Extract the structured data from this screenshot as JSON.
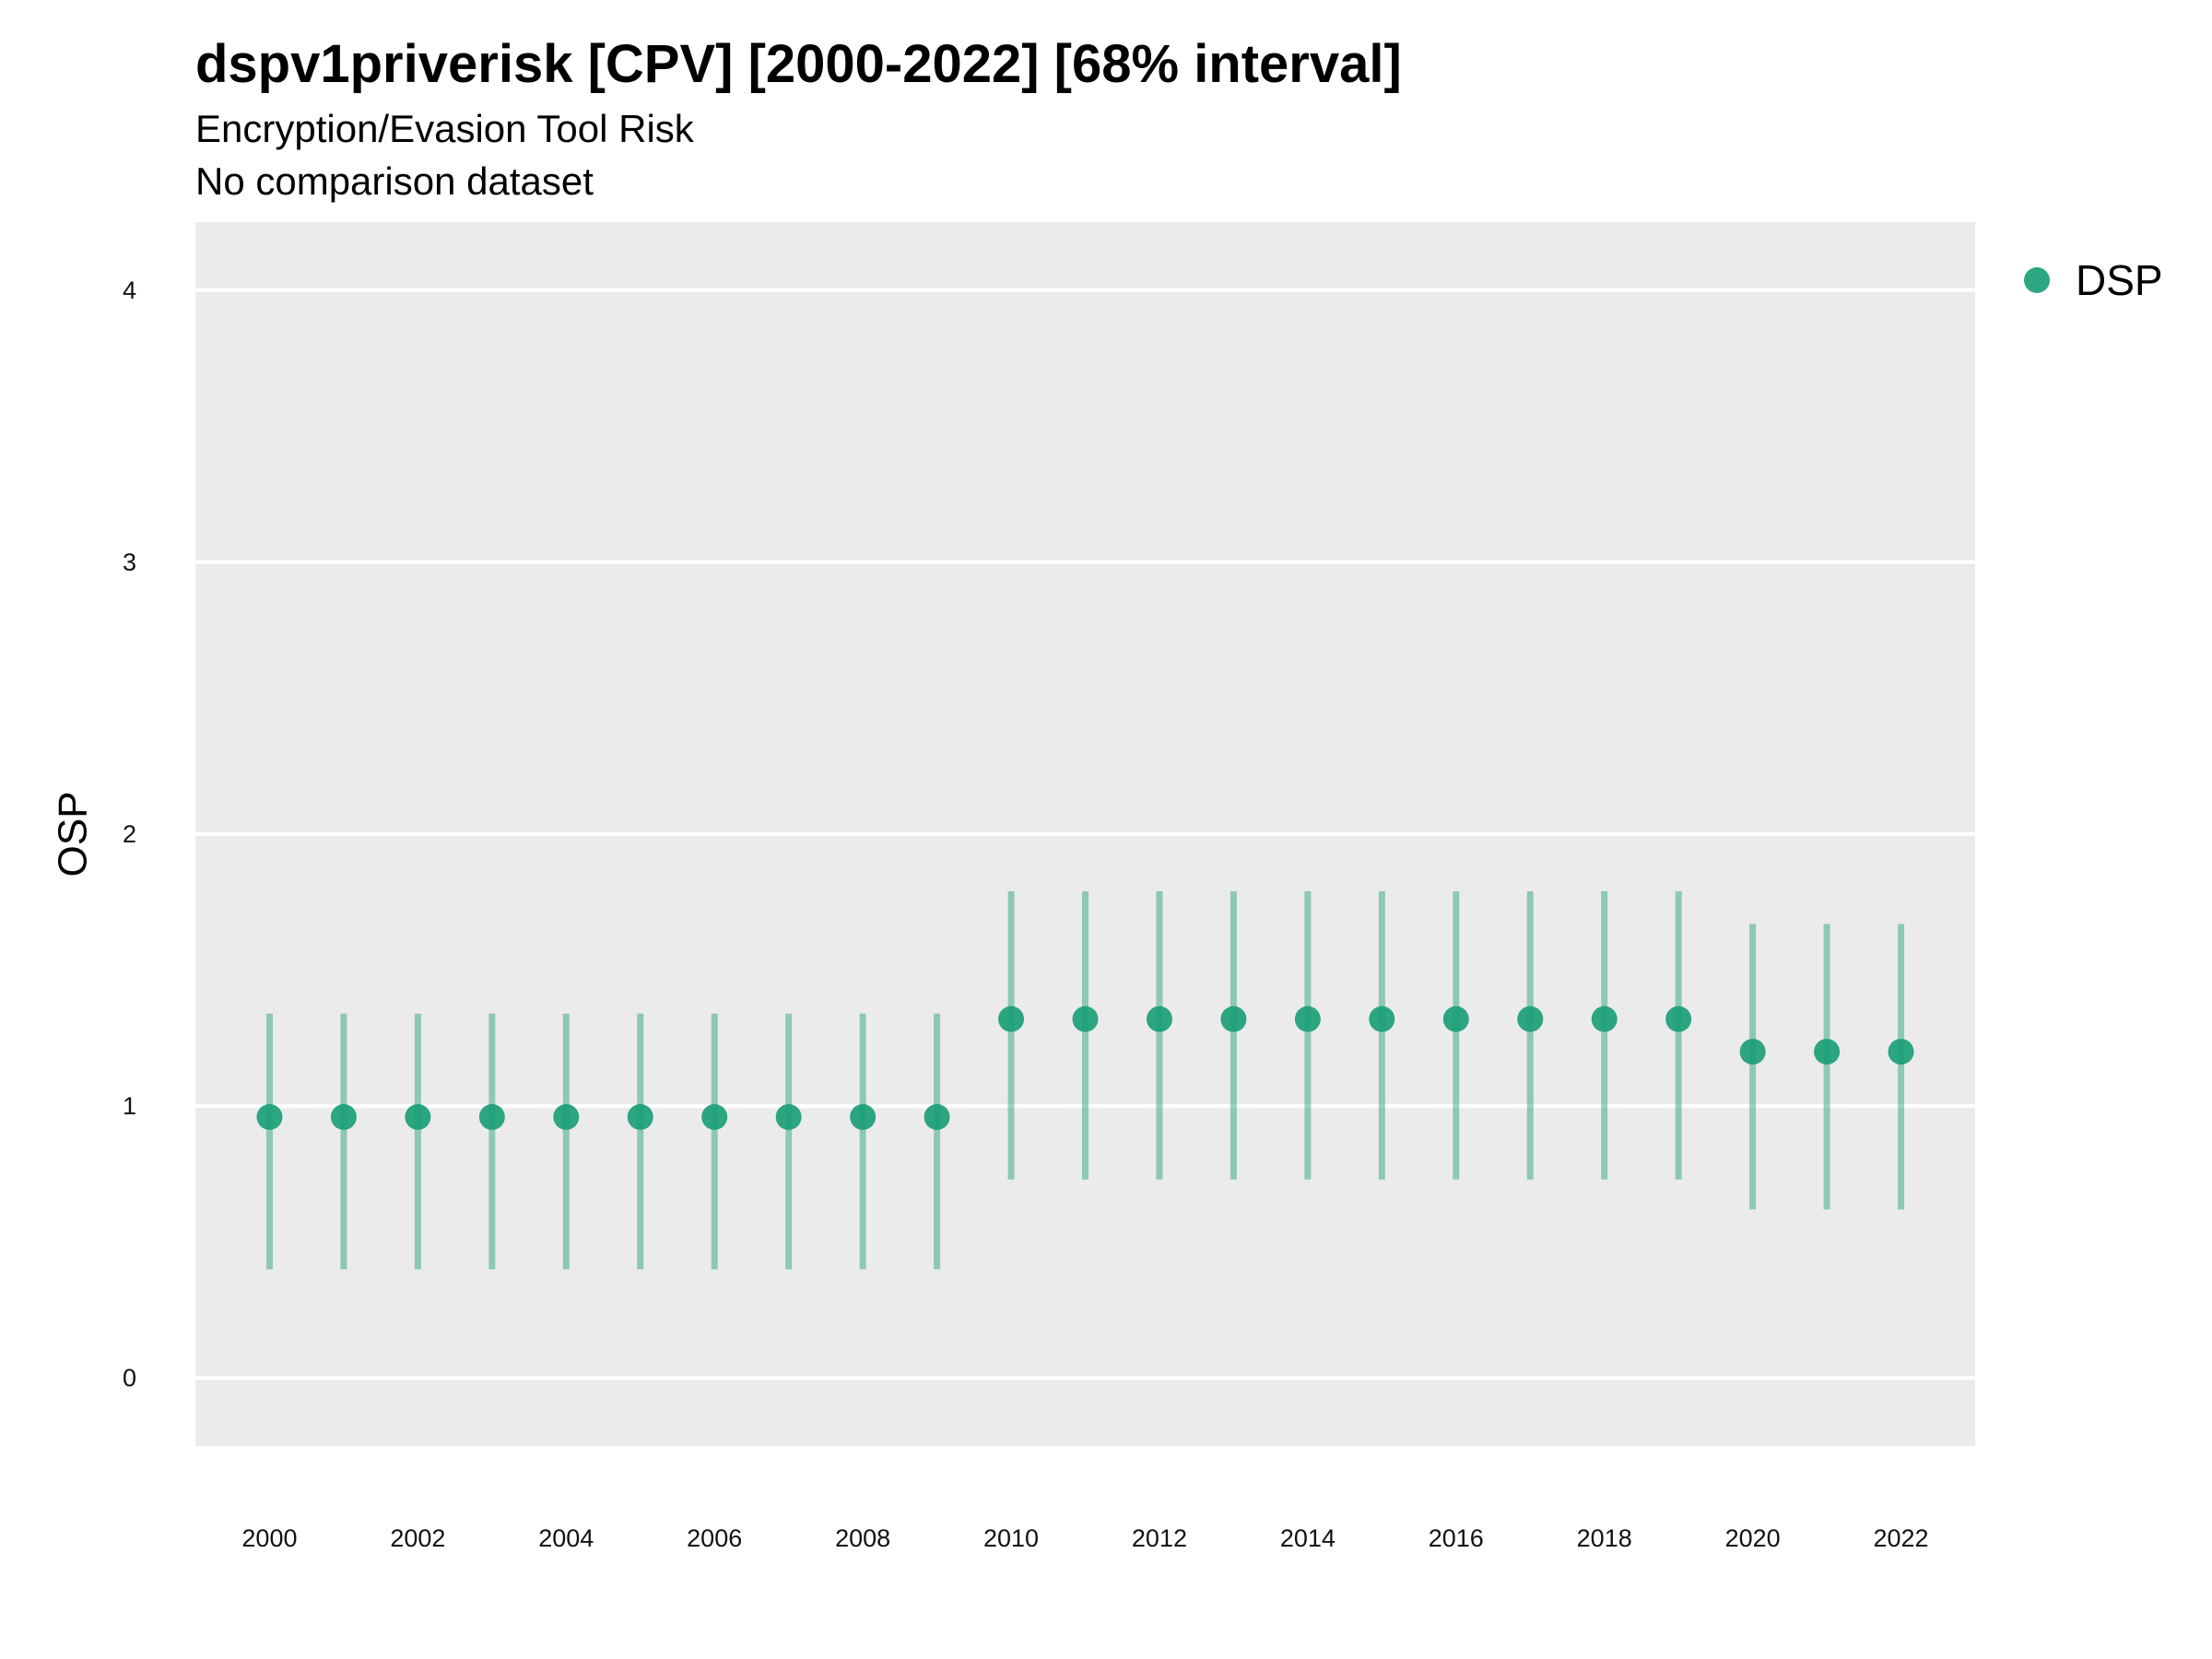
{
  "chart_data": {
    "type": "scatter",
    "title": "dspv1priverisk [CPV] [2000-2022] [68% interval]",
    "subtitle": "Encryption/Evasion Tool Risk",
    "caption": "No comparison dataset",
    "xlabel": "",
    "ylabel": "OSP",
    "xlim": [
      1999,
      2023
    ],
    "ylim": [
      -0.25,
      4.25
    ],
    "x_ticks": [
      2000,
      2002,
      2004,
      2006,
      2008,
      2010,
      2012,
      2014,
      2016,
      2018,
      2020,
      2022
    ],
    "y_ticks": [
      0,
      1,
      2,
      3,
      4
    ],
    "grid": true,
    "legend_position": "top-right",
    "series": [
      {
        "name": "DSP",
        "color": "#1b9e77",
        "x": [
          2000,
          2001,
          2002,
          2003,
          2004,
          2005,
          2006,
          2007,
          2008,
          2009,
          2010,
          2011,
          2012,
          2013,
          2014,
          2015,
          2016,
          2017,
          2018,
          2019,
          2020,
          2021,
          2022
        ],
        "y": [
          0.96,
          0.96,
          0.96,
          0.96,
          0.96,
          0.96,
          0.96,
          0.96,
          0.96,
          0.96,
          1.32,
          1.32,
          1.32,
          1.32,
          1.32,
          1.32,
          1.32,
          1.32,
          1.32,
          1.32,
          1.2,
          1.2,
          1.2
        ],
        "lower": [
          0.4,
          0.4,
          0.4,
          0.4,
          0.4,
          0.4,
          0.4,
          0.4,
          0.4,
          0.4,
          0.73,
          0.73,
          0.73,
          0.73,
          0.73,
          0.73,
          0.73,
          0.73,
          0.73,
          0.73,
          0.62,
          0.62,
          0.62
        ],
        "upper": [
          1.34,
          1.34,
          1.34,
          1.34,
          1.34,
          1.34,
          1.34,
          1.34,
          1.34,
          1.34,
          1.79,
          1.79,
          1.79,
          1.79,
          1.79,
          1.79,
          1.79,
          1.79,
          1.79,
          1.79,
          1.67,
          1.67,
          1.67
        ]
      }
    ]
  }
}
